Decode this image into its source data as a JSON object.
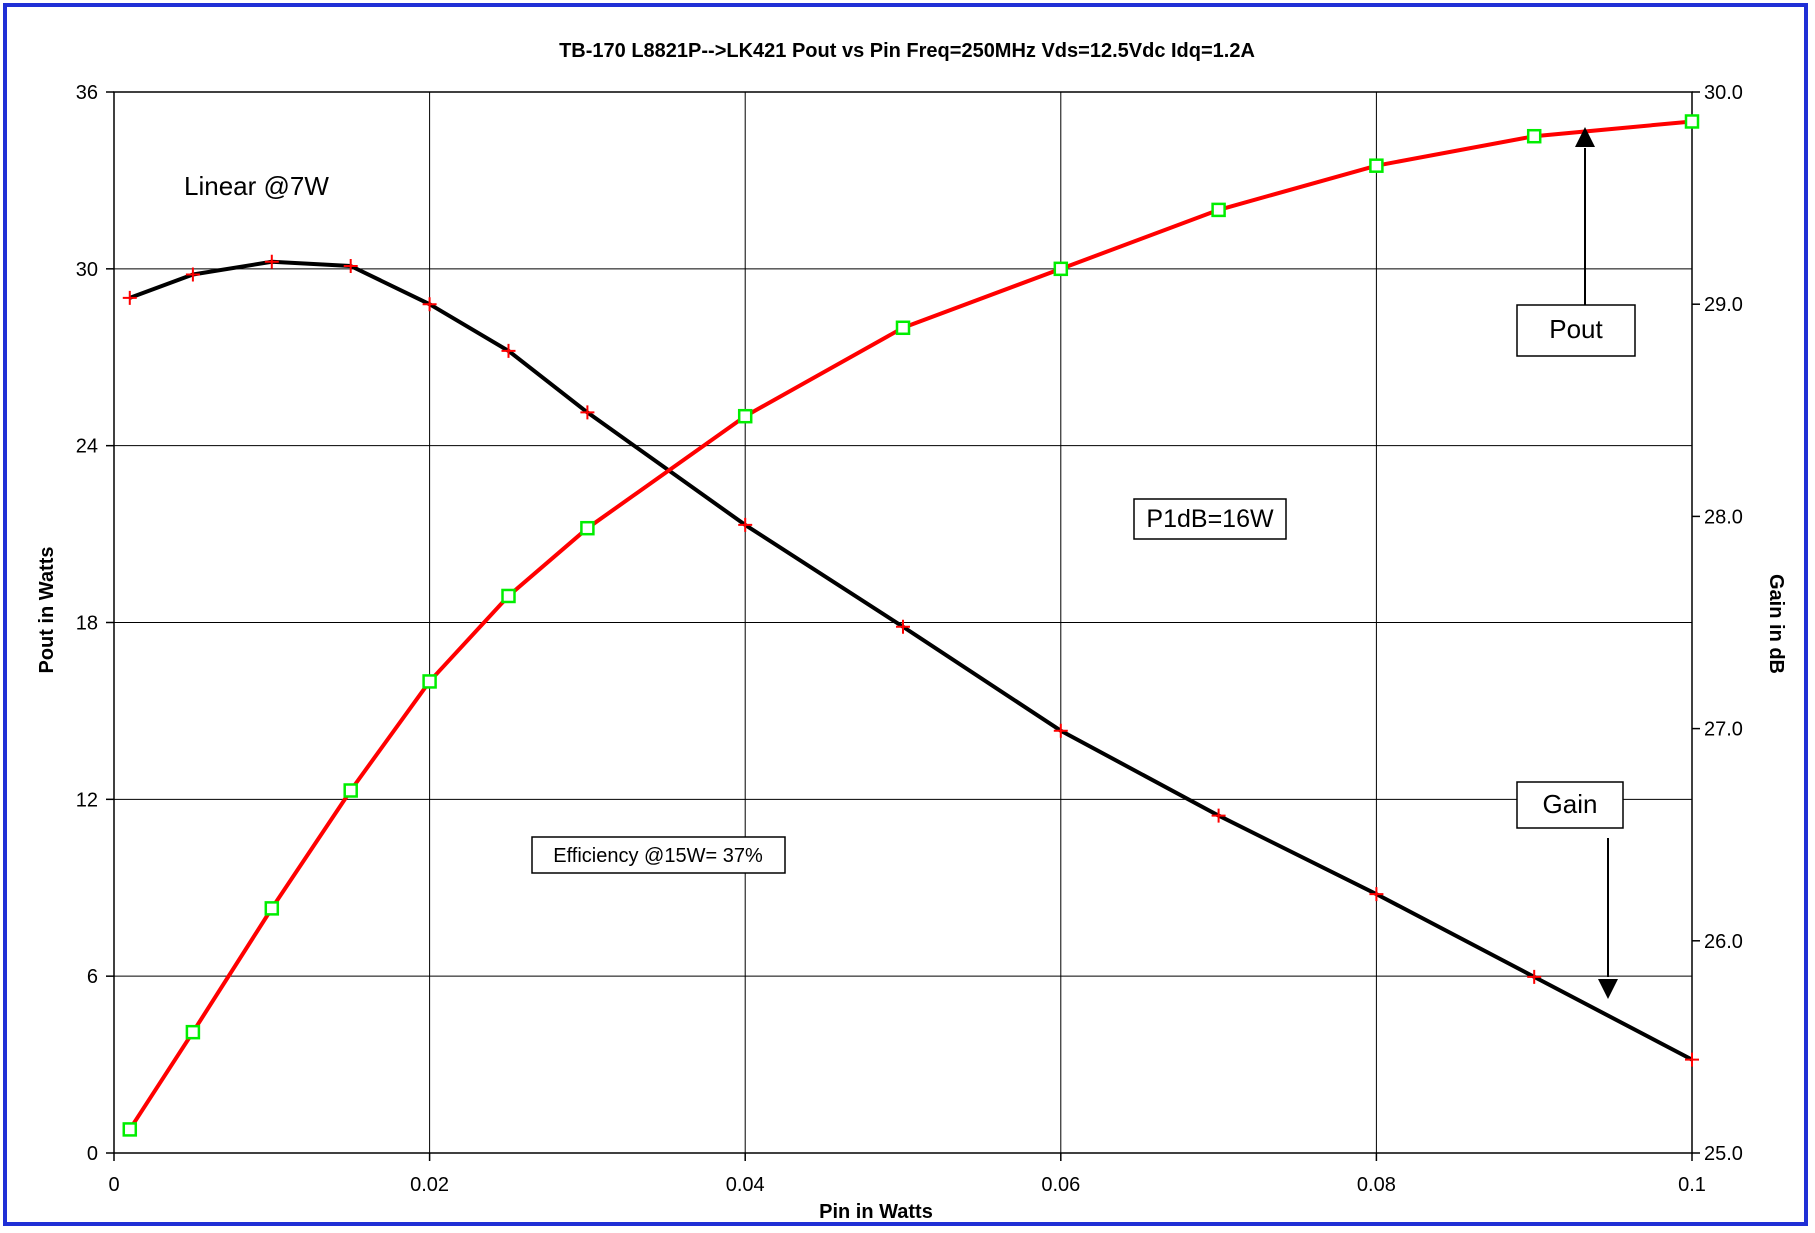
{
  "chart_data": {
    "type": "line",
    "title": "TB-170 L8821P-->LK421 Pout vs Pin Freq=250MHz Vds=12.5Vdc Idq=1.2A",
    "xlabel": "Pin in Watts",
    "ylabel": "Pout in Watts",
    "y2label": "Gain in dB",
    "xlim": [
      0,
      0.1
    ],
    "ylim": [
      0,
      36
    ],
    "y2lim": [
      25.0,
      30.0
    ],
    "grid": true,
    "x_ticks": [
      0,
      0.02,
      0.04,
      0.06,
      0.08,
      0.1
    ],
    "x_tick_labels": [
      "0",
      "0.02",
      "0.04",
      "0.06",
      "0.08",
      "0.1"
    ],
    "y_ticks": [
      0,
      6,
      12,
      18,
      24,
      30,
      36
    ],
    "y_tick_labels": [
      "0",
      "6",
      "12",
      "18",
      "24",
      "30",
      "36"
    ],
    "y2_ticks": [
      25,
      26,
      27,
      28,
      29,
      30
    ],
    "y2_tick_labels": [
      "25.0",
      "26.0",
      "27.0",
      "28.0",
      "29.0",
      "30.0"
    ],
    "series": [
      {
        "axis": "left",
        "color": "#ff0000",
        "marker": "square",
        "marker_color": "#00ee00",
        "x": [
          0.001,
          0.005,
          0.01,
          0.015,
          0.02,
          0.025,
          0.03,
          0.04,
          0.05,
          0.06,
          0.07,
          0.08,
          0.09,
          0.1
        ],
        "values": [
          0.8,
          4.1,
          8.3,
          12.3,
          16.0,
          18.9,
          21.2,
          25.0,
          28.0,
          30.0,
          32.0,
          33.5,
          34.5,
          35.0
        ]
      },
      {
        "axis": "right",
        "color": "#000000",
        "marker": "plus",
        "marker_color": "#ff0000",
        "x": [
          0.001,
          0.005,
          0.01,
          0.015,
          0.02,
          0.025,
          0.03,
          0.04,
          0.05,
          0.06,
          0.07,
          0.08,
          0.09,
          0.1
        ],
        "values": [
          29.03,
          29.14,
          29.2,
          29.18,
          29.0,
          28.78,
          28.49,
          27.96,
          27.48,
          26.99,
          26.59,
          26.22,
          25.83,
          25.44
        ]
      }
    ],
    "annotations": [
      {
        "text": "Linear @7W",
        "boxed": false
      },
      {
        "text": "P1dB=16W",
        "boxed": true
      },
      {
        "text": "Efficiency @15W= 37%",
        "boxed": true
      },
      {
        "text": "Pout",
        "boxed": true,
        "arrow": "up"
      },
      {
        "text": "Gain",
        "boxed": true,
        "arrow": "down"
      }
    ]
  },
  "colors": {
    "frame": "#1f2fd6",
    "pout_line": "#ff0000",
    "pout_marker": "#00ee00",
    "gain_line": "#000000",
    "gain_marker": "#ff0000"
  }
}
